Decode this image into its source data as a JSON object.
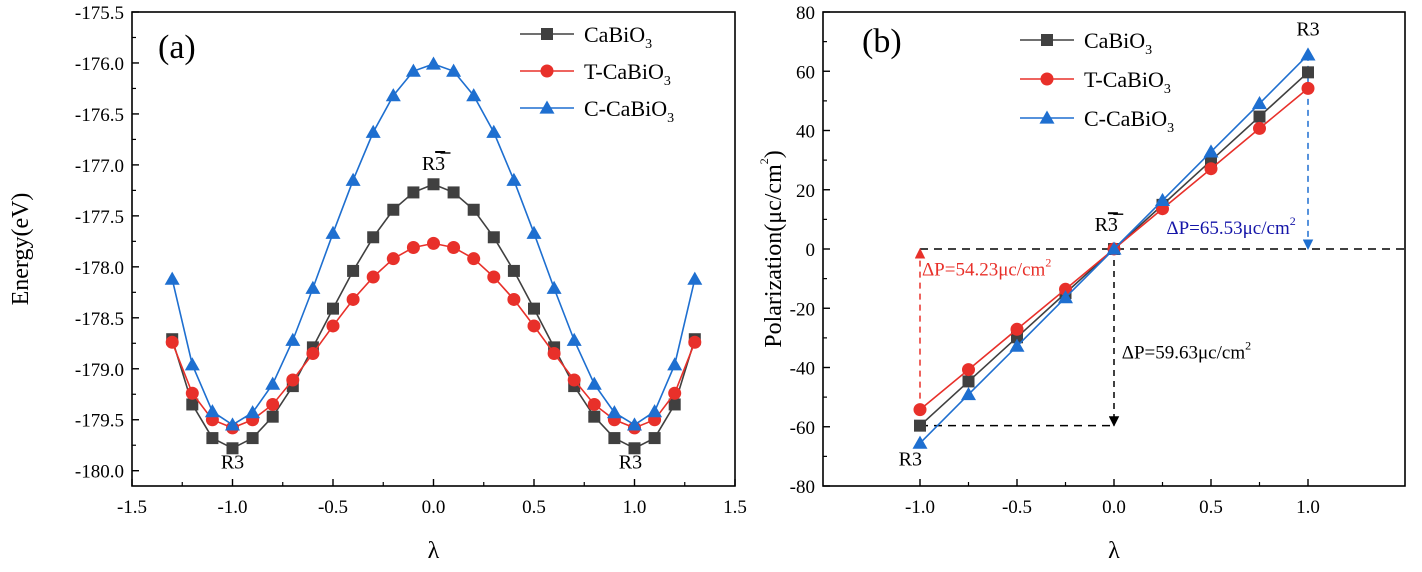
{
  "chart_data": [
    {
      "type": "line",
      "panel_label": "(a)",
      "xlabel": "λ",
      "ylabel": "Energy(eV)",
      "xlim": [
        -1.5,
        1.5
      ],
      "ylim": [
        -180.15,
        -175.5
      ],
      "xticks": [
        -1.5,
        -1.0,
        -0.5,
        0.0,
        0.5,
        1.0,
        1.5
      ],
      "xtick_labels": [
        "-1.5",
        "-1.0",
        "-0.5",
        "0.0",
        "0.5",
        "1.0",
        "1.5"
      ],
      "yticks": [
        -180.0,
        -179.5,
        -179.0,
        -178.5,
        -178.0,
        -177.5,
        -177.0,
        -176.5,
        -176.0,
        -175.5
      ],
      "ytick_labels": [
        "-180.0",
        "-179.5",
        "-179.0",
        "-178.5",
        "-178.0",
        "-177.5",
        "-177.0",
        "-176.5",
        "-176.0",
        "-175.5"
      ],
      "legend_placement": "top-right",
      "x": [
        -1.3,
        -1.2,
        -1.1,
        -1.0,
        -0.9,
        -0.8,
        -0.7,
        -0.6,
        -0.5,
        -0.4,
        -0.3,
        -0.2,
        -0.1,
        0.0,
        0.1,
        0.2,
        0.3,
        0.4,
        0.5,
        0.6,
        0.7,
        0.8,
        0.9,
        1.0,
        1.1,
        1.2,
        1.3
      ],
      "series": [
        {
          "name": "CaBiO",
          "name_sub": "3",
          "color": "#404040",
          "marker": "square",
          "values": [
            -178.71,
            -179.35,
            -179.68,
            -179.78,
            -179.68,
            -179.47,
            -179.17,
            -178.79,
            -178.41,
            -178.04,
            -177.71,
            -177.44,
            -177.27,
            -177.19,
            -177.27,
            -177.44,
            -177.71,
            -178.04,
            -178.41,
            -178.79,
            -179.17,
            -179.47,
            -179.68,
            -179.78,
            -179.68,
            -179.35,
            -178.71
          ]
        },
        {
          "name": "T-CaBiO",
          "name_sub": "3",
          "color": "#e8302a",
          "marker": "circle",
          "values": [
            -178.74,
            -179.24,
            -179.5,
            -179.58,
            -179.5,
            -179.35,
            -179.11,
            -178.85,
            -178.58,
            -178.32,
            -178.1,
            -177.92,
            -177.81,
            -177.77,
            -177.81,
            -177.92,
            -178.1,
            -178.32,
            -178.58,
            -178.85,
            -179.11,
            -179.35,
            -179.5,
            -179.58,
            -179.5,
            -179.24,
            -178.74
          ]
        },
        {
          "name": "C-CaBiO",
          "name_sub": "3",
          "color": "#1e6fd0",
          "marker": "triangle",
          "values": [
            -178.12,
            -178.96,
            -179.42,
            -179.55,
            -179.43,
            -179.15,
            -178.72,
            -178.21,
            -177.67,
            -177.15,
            -176.68,
            -176.32,
            -176.08,
            -176.01,
            -176.08,
            -176.32,
            -176.68,
            -177.15,
            -177.67,
            -178.21,
            -178.72,
            -179.15,
            -179.43,
            -179.55,
            -179.42,
            -178.96,
            -178.12
          ]
        }
      ],
      "annotations": [
        {
          "text": "R",
          "overbar": "3",
          "x": 0.0,
          "y": -177.05
        },
        {
          "text": "R3",
          "x": -1.0,
          "y": -179.98
        },
        {
          "text": "R3",
          "x": 0.98,
          "y": -179.98
        }
      ]
    },
    {
      "type": "line",
      "panel_label": "(b)",
      "xlabel": "λ",
      "ylabel": "Polarization(μc/cm",
      "ylabel_sup": "2",
      "ylabel_close": ")",
      "xlim": [
        -1.5,
        1.5
      ],
      "ylim": [
        -80,
        80
      ],
      "xticks": [
        -1.0,
        -0.5,
        0.0,
        0.5,
        1.0
      ],
      "xtick_labels": [
        "-1.0",
        "-0.5",
        "0.0",
        "0.5",
        "1.0"
      ],
      "yticks": [
        -80,
        -60,
        -40,
        -20,
        0,
        20,
        40,
        60,
        80
      ],
      "ytick_labels": [
        "-80",
        "-60",
        "-40",
        "-20",
        "0",
        "20",
        "40",
        "60",
        "80"
      ],
      "legend_placement": "top-left",
      "x": [
        -1.0,
        -0.75,
        -0.5,
        -0.25,
        0.0,
        0.25,
        0.5,
        0.75,
        1.0
      ],
      "series": [
        {
          "name": "CaBiO",
          "name_sub": "3",
          "color": "#404040",
          "marker": "square",
          "values": [
            -59.63,
            -44.7,
            -29.8,
            -14.9,
            0.0,
            14.9,
            29.8,
            44.7,
            59.63
          ]
        },
        {
          "name": "T-CaBiO",
          "name_sub": "3",
          "color": "#e8302a",
          "marker": "circle",
          "values": [
            -54.23,
            -40.7,
            -27.1,
            -13.6,
            0.0,
            13.6,
            27.1,
            40.7,
            54.23
          ]
        },
        {
          "name": "C-CaBiO",
          "name_sub": "3",
          "color": "#1e6fd0",
          "marker": "triangle",
          "values": [
            -65.53,
            -49.1,
            -32.8,
            -16.4,
            0.0,
            16.4,
            32.8,
            49.1,
            65.53
          ]
        }
      ],
      "annotations": [
        {
          "text": "R",
          "overbar": "3",
          "x": -0.04,
          "y": 6
        },
        {
          "text": "R3",
          "x": -1.05,
          "y": -73
        },
        {
          "text": "R3",
          "x": 1.0,
          "y": 72
        },
        {
          "text": "ΔP=54.23μc/cm",
          "sup": "2",
          "color": "#e8302a",
          "x": -0.99,
          "y": -9
        },
        {
          "text": "ΔP=65.53μc/cm",
          "sup": "2",
          "color": "#1515a8",
          "x": 0.27,
          "y": 5
        },
        {
          "text": "ΔP=59.63μc/cm",
          "sup": "2",
          "color": "#000000",
          "x": 0.04,
          "y": -37
        }
      ],
      "guides": [
        {
          "type": "hline",
          "y": 0,
          "x_from": -1.0,
          "x_to": 1.5,
          "color": "#000000"
        },
        {
          "type": "hline",
          "y": -59.63,
          "x_from": -1.0,
          "x_to": 0.0,
          "color": "#000000"
        },
        {
          "type": "arrow",
          "x": 0.0,
          "y_from": 0,
          "y_to": -59.63,
          "color": "#000000"
        },
        {
          "type": "arrow",
          "x": -1.0,
          "y_from": -54.23,
          "y_to": 0,
          "color": "#e8302a"
        },
        {
          "type": "arrow",
          "x": 1.0,
          "y_from": 65.53,
          "y_to": 0,
          "color": "#1e6fd0"
        }
      ]
    }
  ]
}
